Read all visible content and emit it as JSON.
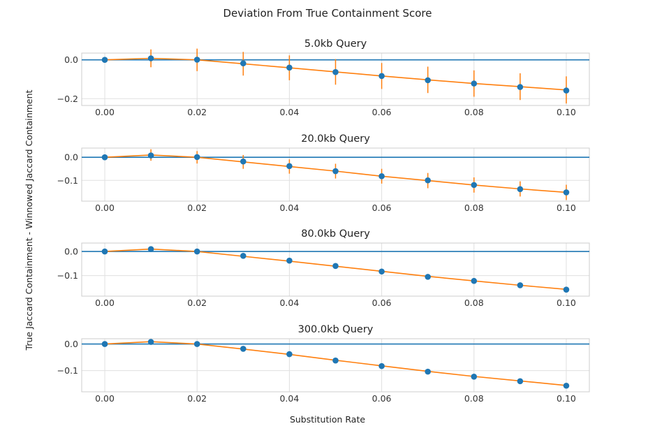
{
  "chart_data": {
    "type": "line",
    "title": "Deviation From True Containment Score",
    "xlabel": "Substitution Rate",
    "ylabel": "True Jaccard Containment - Winnowed Jaccard Containment",
    "grid": true,
    "x": [
      0.0,
      0.01,
      0.02,
      0.03,
      0.04,
      0.05,
      0.06,
      0.07,
      0.08,
      0.09,
      0.1
    ],
    "xticks": [
      "0.00",
      "0.02",
      "0.04",
      "0.06",
      "0.08",
      "0.10"
    ],
    "xlim": [
      -0.005,
      0.105
    ],
    "colors": {
      "points": "#1f77b4",
      "line": "#ff7f0e",
      "zero_line": "#1f77b4",
      "grid": "#e0e0e0",
      "frame": "#cccccc"
    },
    "panels": [
      {
        "title": "5.0kb Query",
        "ylim": [
          -0.235,
          0.035
        ],
        "yticks": [
          0.0,
          -0.2
        ],
        "ytick_labels": [
          "0.0",
          "−0.2"
        ],
        "points": [
          0.0,
          0.008,
          0.001,
          -0.018,
          -0.04,
          -0.063,
          -0.083,
          -0.105,
          -0.122,
          -0.14,
          -0.158
        ],
        "fit": [
          0.0,
          0.008,
          0.0,
          -0.02,
          -0.041,
          -0.062,
          -0.083,
          -0.103,
          -0.122,
          -0.138,
          -0.155
        ],
        "err": [
          0.0,
          0.046,
          0.058,
          0.061,
          0.064,
          0.066,
          0.067,
          0.068,
          0.068,
          0.069,
          0.07
        ]
      },
      {
        "title": "20.0kb Query",
        "ylim": [
          -0.19,
          0.04
        ],
        "yticks": [
          0.0,
          -0.1
        ],
        "ytick_labels": [
          "0.0",
          "−0.1"
        ],
        "points": [
          0.0,
          0.008,
          0.001,
          -0.018,
          -0.038,
          -0.06,
          -0.082,
          -0.1,
          -0.12,
          -0.138,
          -0.152
        ],
        "fit": [
          0.0,
          0.01,
          0.0,
          -0.02,
          -0.04,
          -0.06,
          -0.082,
          -0.101,
          -0.12,
          -0.137,
          -0.152
        ],
        "err": [
          0.0,
          0.025,
          0.027,
          0.03,
          0.031,
          0.032,
          0.032,
          0.033,
          0.033,
          0.033,
          0.033
        ]
      },
      {
        "title": "80.0kb Query",
        "ylim": [
          -0.185,
          0.035
        ],
        "yticks": [
          0.0,
          -0.1
        ],
        "ytick_labels": [
          "0.0",
          "−0.1"
        ],
        "points": [
          0.0,
          0.01,
          0.0,
          -0.018,
          -0.038,
          -0.06,
          -0.083,
          -0.105,
          -0.122,
          -0.14,
          -0.158
        ],
        "fit": [
          0.0,
          0.01,
          0.0,
          -0.02,
          -0.04,
          -0.061,
          -0.082,
          -0.103,
          -0.122,
          -0.14,
          -0.157
        ],
        "err": [
          0.0,
          0.006,
          0.006,
          0.007,
          0.007,
          0.008,
          0.008,
          0.008,
          0.008,
          0.008,
          0.008
        ]
      },
      {
        "title": "300.0kb Query",
        "ylim": [
          -0.18,
          0.02
        ],
        "yticks": [
          0.0,
          -0.1
        ],
        "ytick_labels": [
          "0.0",
          "−0.1"
        ],
        "points": [
          0.0,
          0.008,
          0.0,
          -0.018,
          -0.038,
          -0.062,
          -0.083,
          -0.104,
          -0.123,
          -0.14,
          -0.157
        ],
        "fit": [
          0.0,
          0.009,
          0.0,
          -0.019,
          -0.039,
          -0.061,
          -0.082,
          -0.103,
          -0.122,
          -0.139,
          -0.156
        ],
        "err": [
          0.0,
          0.003,
          0.003,
          0.003,
          0.003,
          0.004,
          0.004,
          0.004,
          0.004,
          0.004,
          0.004
        ]
      }
    ]
  }
}
